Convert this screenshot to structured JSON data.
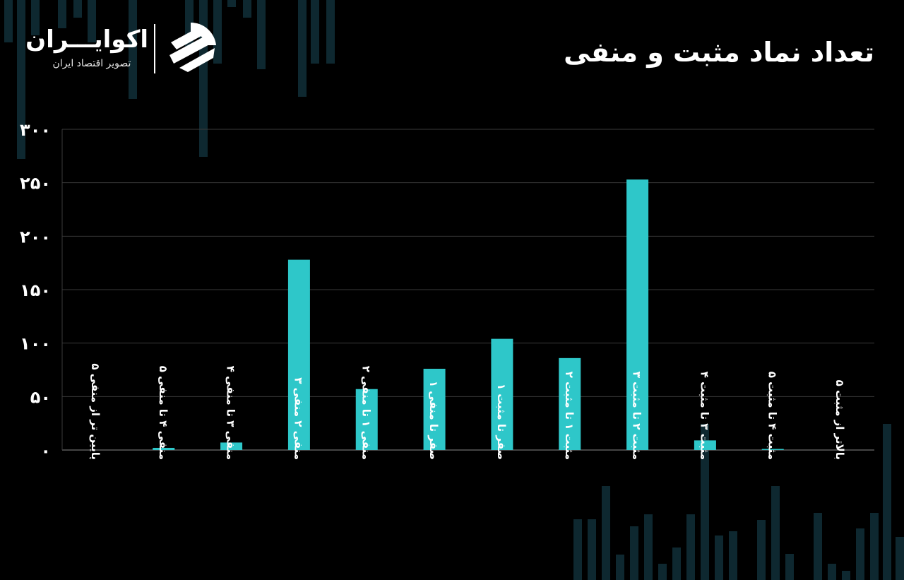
{
  "header": {
    "title": "تعداد نماد مثبت و منفی"
  },
  "logo": {
    "name": "اکوایـــران",
    "tagline": "تصویر اقتصاد ایران"
  },
  "colors": {
    "background": "#000000",
    "bar": "#2ec7c9",
    "grid": "#3a3a3a",
    "text": "#ffffff"
  },
  "chart_data": {
    "type": "bar",
    "categories": [
      "پایین تر از منفی ۵",
      "منفی ۴ تا منفی ۵",
      "منفی ۳ تا منفی ۴",
      "منفی ۲ منفی ۳",
      "منفی ۱ تا منفی ۲",
      "صفر تا منفی ۱",
      "صفر تا مثبت ۱",
      "مثبت ۱ تا مثبت ۲",
      "مثبت ۲ تا مثبت ۳",
      "مثبت ۳ تا مثبت ۴",
      "مثبت ۴ تا مثبت ۵",
      "بالاتر از مثبت ۵"
    ],
    "values": [
      0,
      2,
      7,
      178,
      57,
      76,
      104,
      86,
      253,
      9,
      1,
      0
    ],
    "yticks": [
      "۰",
      "۵۰",
      "۱۰۰",
      "۱۵۰",
      "۲۰۰",
      "۲۵۰",
      "۳۰۰"
    ],
    "ylim": [
      0,
      300
    ],
    "grid": true,
    "legend": "none"
  }
}
